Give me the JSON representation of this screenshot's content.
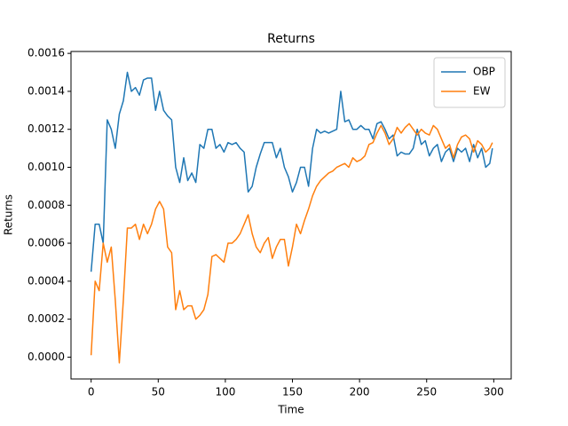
{
  "chart_data": {
    "type": "line",
    "title": "Returns",
    "xlabel": "Time",
    "ylabel": "Returns",
    "x": [
      0,
      3,
      6,
      9,
      12,
      15,
      18,
      21,
      24,
      27,
      30,
      33,
      36,
      39,
      42,
      45,
      48,
      51,
      54,
      57,
      60,
      63,
      66,
      69,
      72,
      75,
      78,
      81,
      84,
      87,
      90,
      93,
      96,
      99,
      102,
      105,
      108,
      111,
      114,
      117,
      120,
      123,
      126,
      129,
      132,
      135,
      138,
      141,
      144,
      147,
      150,
      153,
      156,
      159,
      162,
      165,
      168,
      171,
      174,
      177,
      180,
      183,
      186,
      189,
      192,
      195,
      198,
      201,
      204,
      207,
      210,
      213,
      216,
      219,
      222,
      225,
      228,
      231,
      234,
      237,
      240,
      243,
      246,
      249,
      252,
      255,
      258,
      261,
      264,
      267,
      270,
      273,
      276,
      279,
      282,
      285,
      288,
      291,
      294,
      297,
      299
    ],
    "series": [
      {
        "name": "OBP",
        "color": "#1f77b4",
        "values": [
          0.00045,
          0.0007,
          0.0007,
          0.0006,
          0.00125,
          0.0012,
          0.0011,
          0.00128,
          0.00135,
          0.0015,
          0.0014,
          0.00142,
          0.00138,
          0.00146,
          0.00147,
          0.00147,
          0.0013,
          0.0014,
          0.0013,
          0.00127,
          0.00125,
          0.001,
          0.00092,
          0.00105,
          0.00093,
          0.00097,
          0.00092,
          0.00112,
          0.0011,
          0.0012,
          0.0012,
          0.0011,
          0.00112,
          0.00108,
          0.00113,
          0.00112,
          0.00113,
          0.0011,
          0.00108,
          0.00087,
          0.0009,
          0.001,
          0.00107,
          0.00113,
          0.00113,
          0.00113,
          0.00105,
          0.0011,
          0.001,
          0.00095,
          0.00087,
          0.00092,
          0.001,
          0.001,
          0.0009,
          0.0011,
          0.0012,
          0.00118,
          0.00119,
          0.00118,
          0.00119,
          0.0012,
          0.0014,
          0.00124,
          0.00125,
          0.0012,
          0.0012,
          0.00122,
          0.0012,
          0.0012,
          0.00115,
          0.00123,
          0.00124,
          0.0012,
          0.00115,
          0.00117,
          0.00106,
          0.00108,
          0.00107,
          0.00107,
          0.0011,
          0.0012,
          0.00112,
          0.00114,
          0.00106,
          0.0011,
          0.00112,
          0.00103,
          0.00108,
          0.0011,
          0.00103,
          0.0011,
          0.00108,
          0.0011,
          0.00103,
          0.00112,
          0.00105,
          0.0011,
          0.001,
          0.00102,
          0.0011
        ]
      },
      {
        "name": "EW",
        "color": "#ff7f0e",
        "values": [
          1e-05,
          0.0004,
          0.00035,
          0.0006,
          0.0005,
          0.00058,
          0.0003,
          -3e-05,
          0.0003,
          0.00068,
          0.00068,
          0.0007,
          0.00062,
          0.0007,
          0.00065,
          0.0007,
          0.00078,
          0.00082,
          0.00078,
          0.00058,
          0.00055,
          0.00025,
          0.00035,
          0.00025,
          0.00027,
          0.00027,
          0.0002,
          0.00022,
          0.00025,
          0.00033,
          0.00053,
          0.00054,
          0.00052,
          0.0005,
          0.0006,
          0.0006,
          0.00062,
          0.00065,
          0.0007,
          0.00075,
          0.00065,
          0.00058,
          0.00055,
          0.0006,
          0.00063,
          0.00052,
          0.00058,
          0.00062,
          0.00062,
          0.00048,
          0.00058,
          0.0007,
          0.00065,
          0.00072,
          0.00078,
          0.00085,
          0.0009,
          0.00093,
          0.00095,
          0.00097,
          0.00098,
          0.001,
          0.00101,
          0.00102,
          0.001,
          0.00105,
          0.00103,
          0.00104,
          0.00106,
          0.00112,
          0.00113,
          0.00118,
          0.00122,
          0.00118,
          0.00112,
          0.00115,
          0.00121,
          0.00118,
          0.00121,
          0.00123,
          0.0012,
          0.00117,
          0.0012,
          0.00118,
          0.00117,
          0.00122,
          0.0012,
          0.00115,
          0.0011,
          0.00112,
          0.00105,
          0.00112,
          0.00116,
          0.00117,
          0.00115,
          0.00108,
          0.00114,
          0.00112,
          0.00108,
          0.0011,
          0.00113
        ]
      }
    ],
    "xlim": [
      -15,
      313
    ],
    "ylim": [
      -0.000115,
      0.00161
    ],
    "xticks": [
      0,
      50,
      100,
      150,
      200,
      250,
      300
    ],
    "yticks": [
      {
        "value": 0,
        "label": "0.0000"
      },
      {
        "value": 0.0002,
        "label": "0.0002"
      },
      {
        "value": 0.0004,
        "label": "0.0004"
      },
      {
        "value": 0.0006,
        "label": "0.0006"
      },
      {
        "value": 0.0008,
        "label": "0.0008"
      },
      {
        "value": 0.001,
        "label": "0.0010"
      },
      {
        "value": 0.0012,
        "label": "0.0012"
      },
      {
        "value": 0.0014,
        "label": "0.0014"
      },
      {
        "value": 0.0016,
        "label": "0.0016"
      }
    ],
    "legend": "upper right"
  }
}
